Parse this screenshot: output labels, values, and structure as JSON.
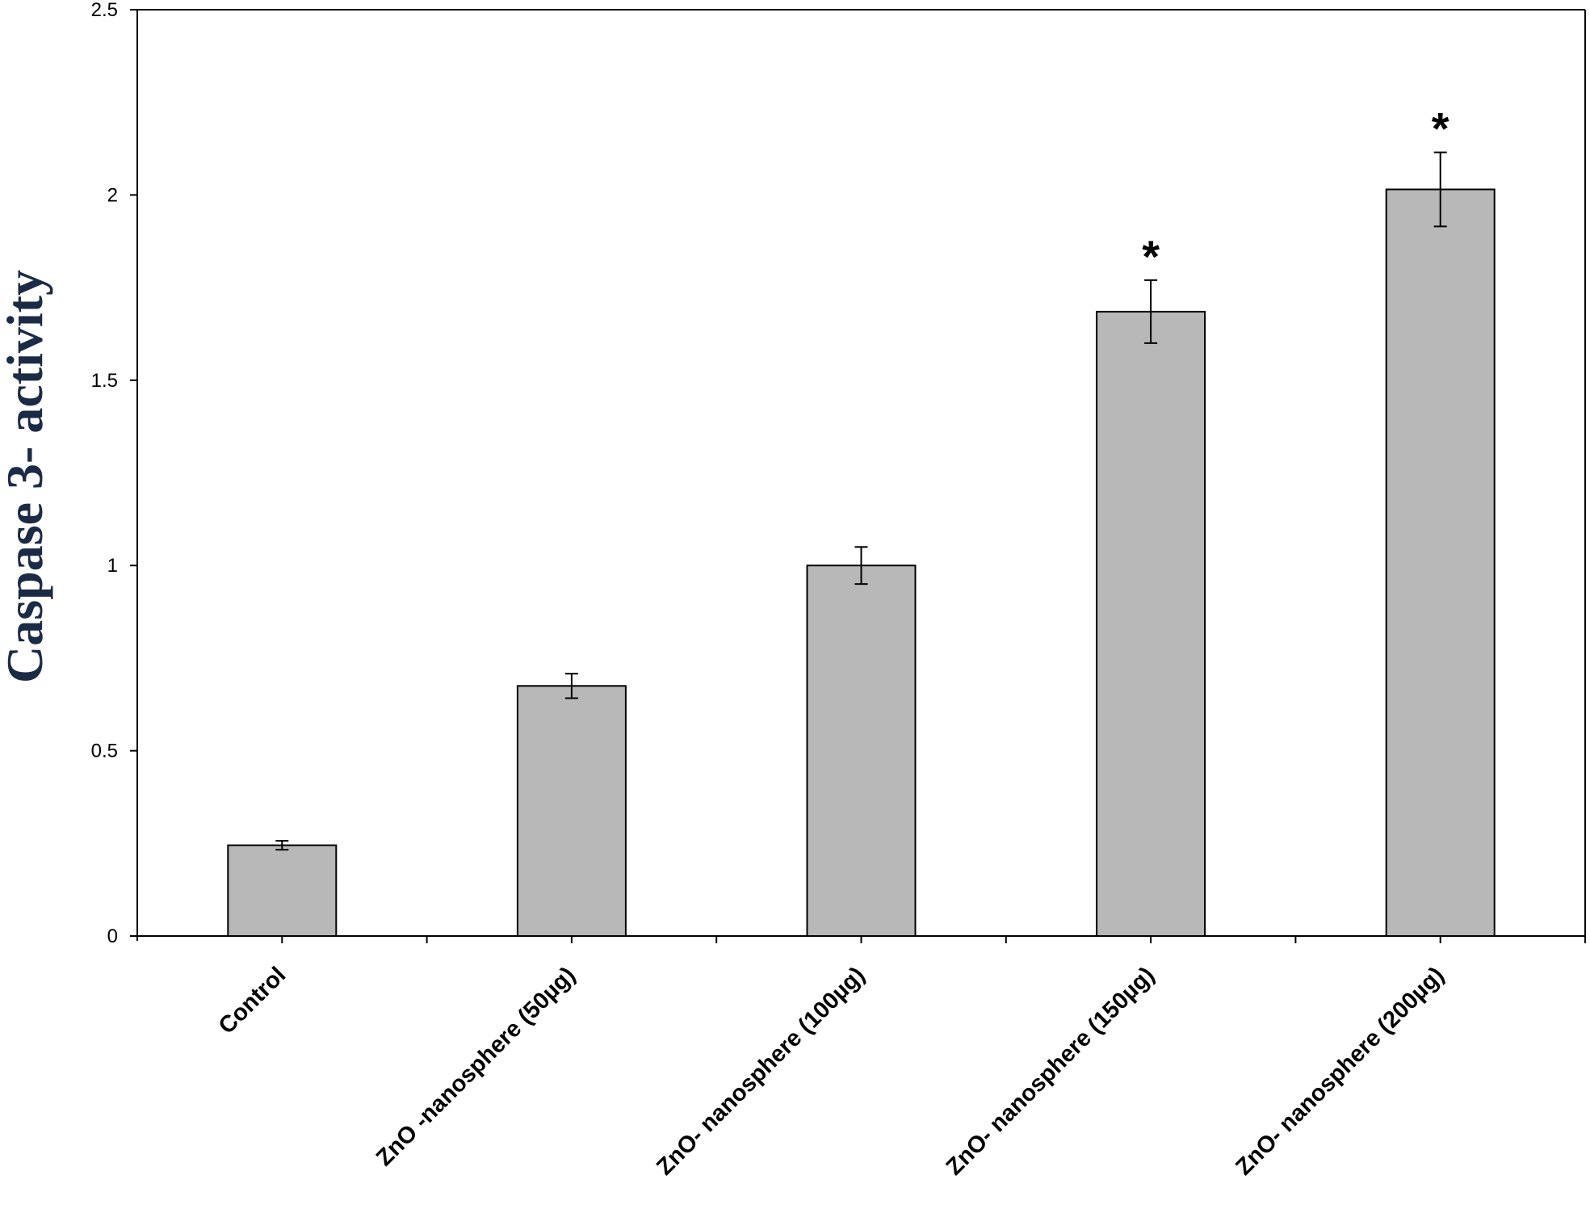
{
  "chart_data": {
    "type": "bar",
    "title": "",
    "xlabel": "",
    "ylabel": "Caspase 3- activity",
    "categories": [
      "Control",
      "ZnO -nanosphere  (50µg)",
      "ZnO- nanosphere (100µg)",
      "ZnO- nanosphere (150µg)",
      "ZnO- nanosphere (200µg)"
    ],
    "values": [
      0.245,
      0.675,
      1.0,
      1.685,
      2.015
    ],
    "errors": [
      0.012,
      0.033,
      0.05,
      0.085,
      0.1
    ],
    "significance": [
      "",
      "",
      "",
      "*",
      "*"
    ],
    "ylim": [
      0,
      2.5
    ],
    "yticks": [
      "0",
      "0.5",
      "1",
      "1.5",
      "2",
      "2.5"
    ],
    "ytick_values": [
      0,
      0.5,
      1,
      1.5,
      2,
      2.5
    ],
    "grid": false,
    "legend": "none",
    "colors": {
      "bar_fill": "#b8b8b8",
      "bar_stroke": "#000000",
      "ylabel": "#1c2b45"
    }
  }
}
